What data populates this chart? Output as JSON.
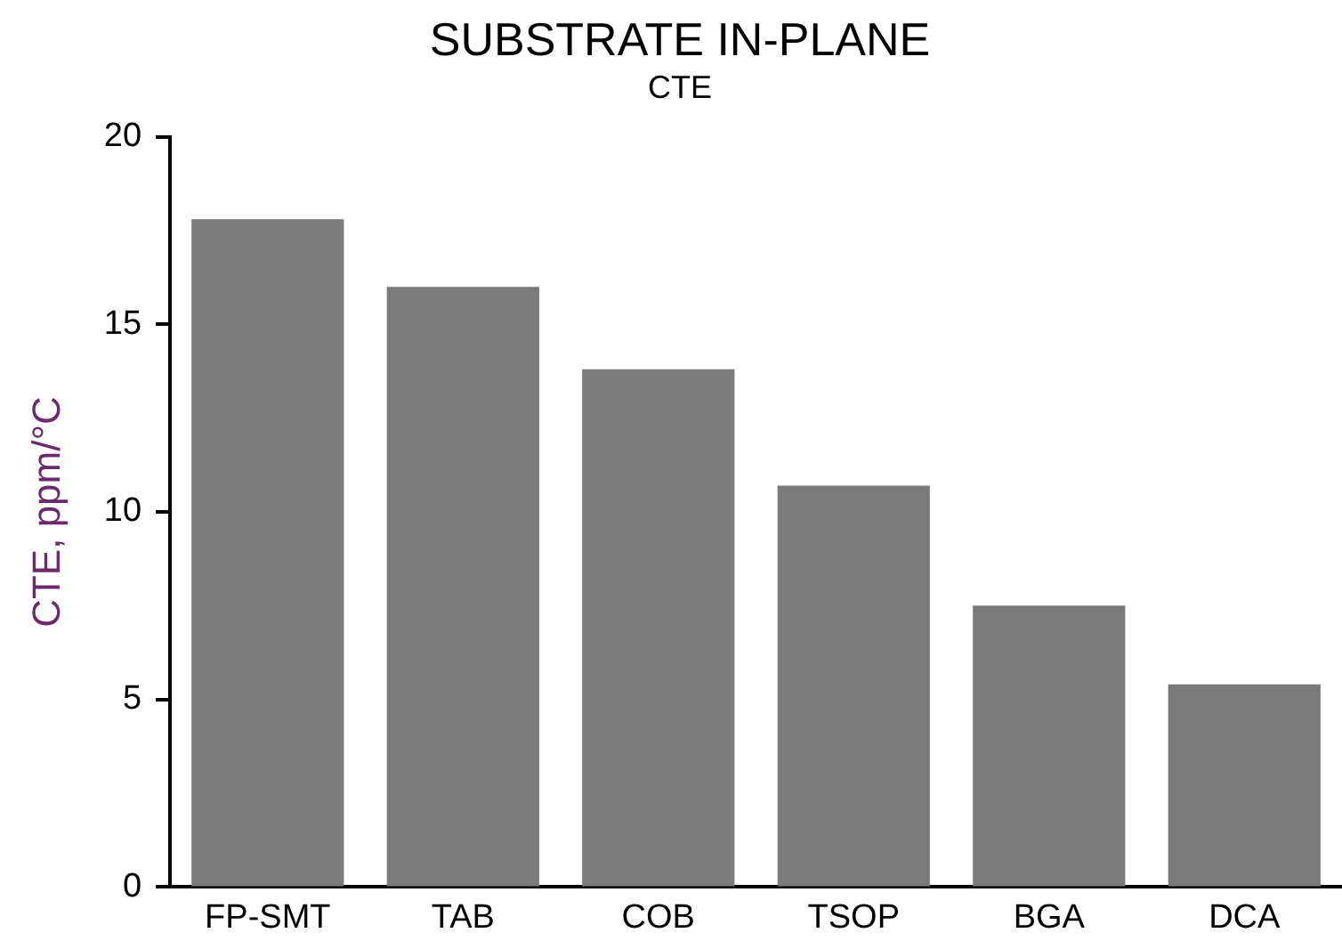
{
  "chart_data": {
    "type": "bar",
    "title": "SUBSTRATE IN-PLANE",
    "subtitle": "CTE",
    "ylabel": "CTE, ppm/°C",
    "categories": [
      "FP-SMT",
      "TAB",
      "COB",
      "TSOP",
      "BGA",
      "DCA"
    ],
    "values": [
      17.8,
      16.0,
      13.8,
      10.7,
      7.5,
      5.4
    ],
    "color": "#7a7a7a",
    "ylim": [
      0,
      20
    ],
    "yticks": [
      0,
      5,
      10,
      15,
      20
    ],
    "grid": false
  }
}
